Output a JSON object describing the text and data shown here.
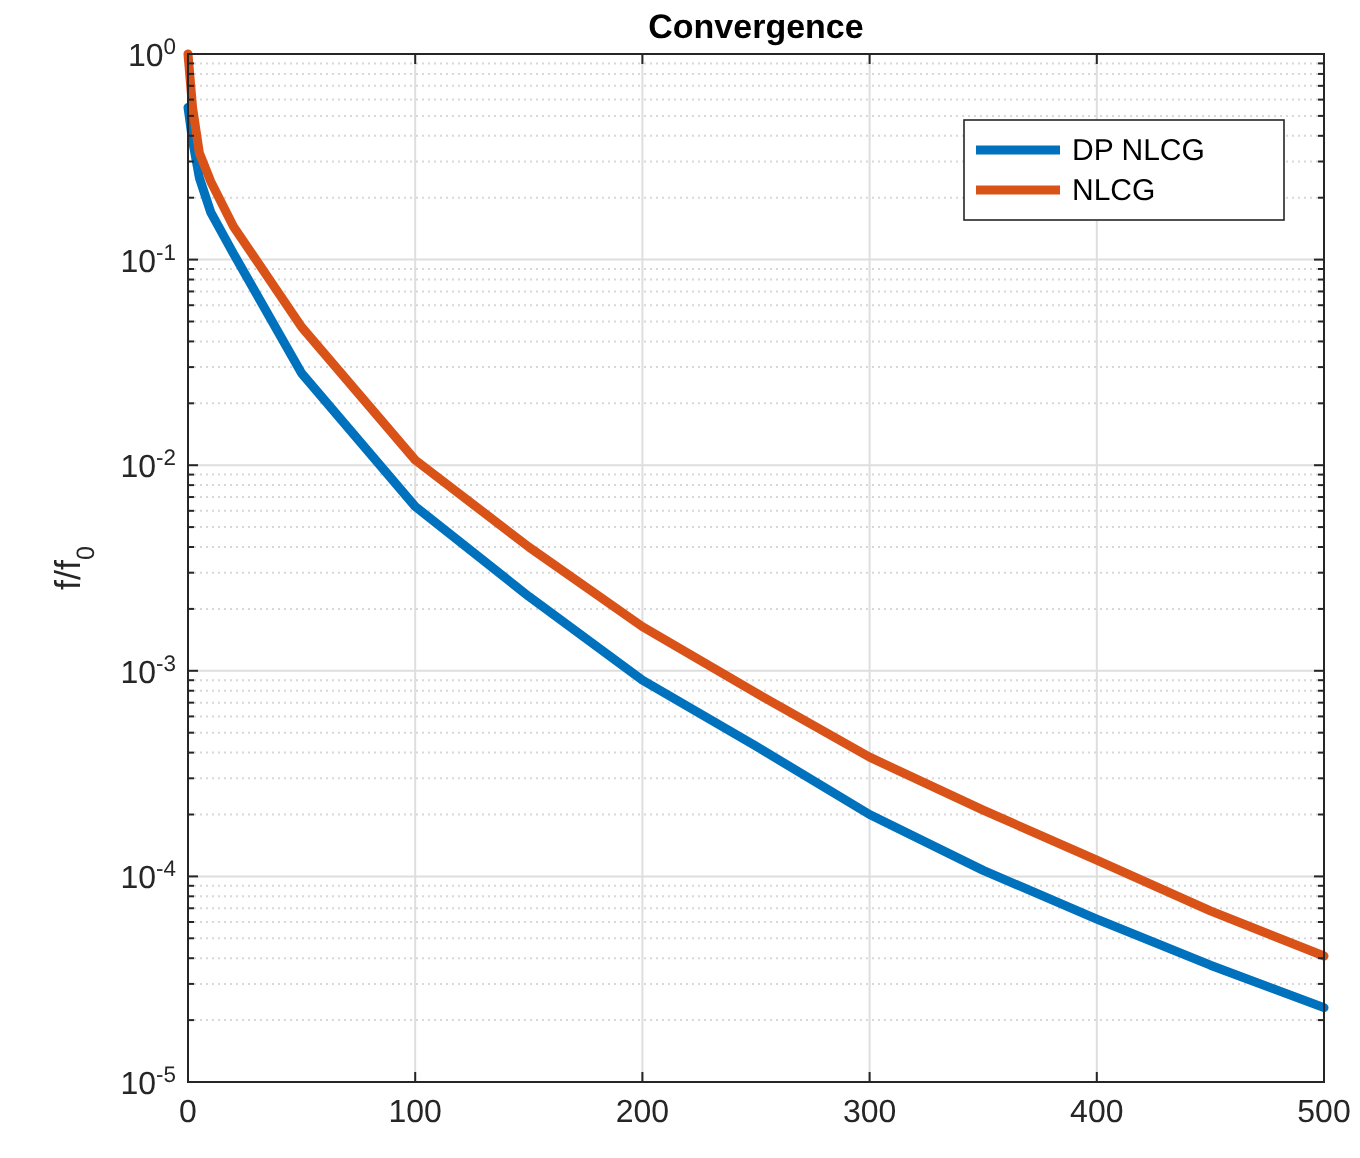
{
  "chart_data": {
    "type": "line",
    "title": "Convergence",
    "ylabel": "f/f$_{0}$",
    "log": "y",
    "grid": true,
    "legend": "top right",
    "line_style": "solid",
    "marker": "none",
    "x": [
      0,
      2,
      5,
      10,
      20,
      50,
      100,
      150,
      200,
      250,
      300,
      350,
      400,
      450,
      500
    ],
    "xlim": [
      0,
      500
    ],
    "xticks": [
      0,
      100,
      200,
      300,
      400,
      500
    ],
    "ylim": [
      1e-05,
      1
    ],
    "yticks": [
      {
        "value": 1,
        "label": "10$^{0}$"
      },
      {
        "value": 0.1,
        "label": "10$^{-1}$"
      },
      {
        "value": 0.01,
        "label": "10$^{-2}$"
      },
      {
        "value": 0.001,
        "label": "10$^{-3}$"
      },
      {
        "value": 0.0001,
        "label": "10$^{-4}$"
      },
      {
        "value": 1e-05,
        "label": "10$^{-5}$"
      }
    ],
    "series": [
      {
        "name": "DP NLCG",
        "color": "#0072bd",
        "values": [
          0.55,
          0.38,
          0.25,
          0.17,
          0.107,
          0.028,
          0.0063,
          0.0023,
          0.0009,
          0.00043,
          0.0002,
          0.000107,
          6.2e-05,
          3.7e-05,
          2.3e-05
        ]
      },
      {
        "name": "NLCG",
        "color": "#d95319",
        "values": [
          1,
          0.55,
          0.33,
          0.24,
          0.145,
          0.047,
          0.0106,
          0.004,
          0.00164,
          0.00078,
          0.00038,
          0.00021,
          0.00012,
          6.8e-05,
          4.1e-05
        ]
      }
    ]
  }
}
